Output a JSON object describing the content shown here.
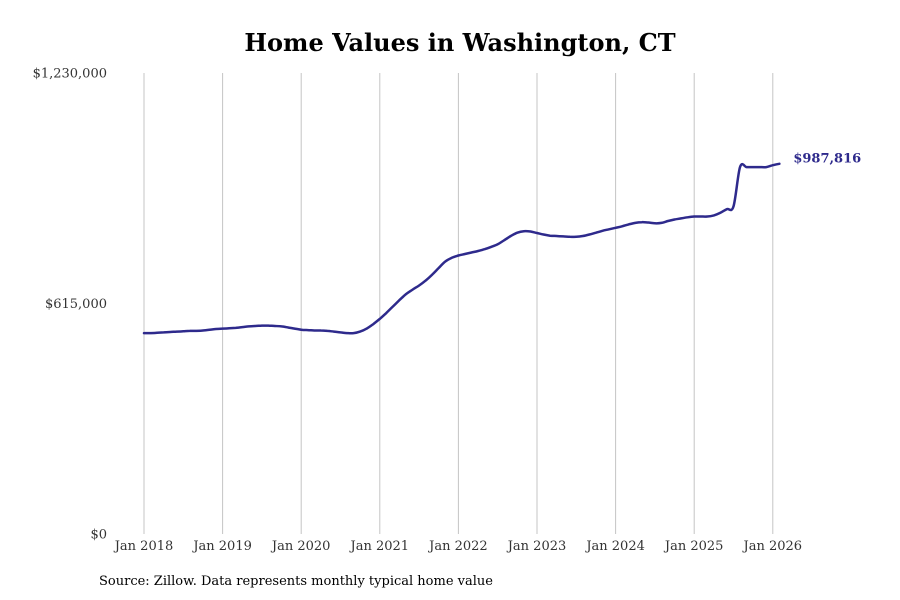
{
  "chart_data": {
    "type": "line",
    "title": "Home Values in Washington, CT",
    "xlabel": "",
    "ylabel": "",
    "x_tick_labels": [
      "Jan 2018",
      "Jan 2019",
      "Jan 2020",
      "Jan 2021",
      "Jan 2022",
      "Jan 2023",
      "Jan 2024",
      "Jan 2025",
      "Jan 2026"
    ],
    "y_tick_labels": [
      "$0",
      "$615,000",
      "$1,230,000"
    ],
    "y_tick_values": [
      0,
      615000,
      1230000
    ],
    "ylim": [
      0,
      1230000
    ],
    "x_start": "2018-01",
    "x_end": "2026-02",
    "grid": "vertical",
    "line_color": "#2e2a8c",
    "end_label": "$987,816",
    "series": [
      {
        "name": "Typical home value",
        "points": [
          [
            0,
            536000
          ],
          [
            1,
            536000
          ],
          [
            2,
            537000
          ],
          [
            3,
            538000
          ],
          [
            4,
            539000
          ],
          [
            5,
            540000
          ],
          [
            6,
            541000
          ],
          [
            7,
            542000
          ],
          [
            8,
            542000
          ],
          [
            9,
            543000
          ],
          [
            10,
            545000
          ],
          [
            11,
            547000
          ],
          [
            12,
            548000
          ],
          [
            13,
            549000
          ],
          [
            14,
            550000
          ],
          [
            15,
            552000
          ],
          [
            16,
            554000
          ],
          [
            17,
            555000
          ],
          [
            18,
            556000
          ],
          [
            19,
            556000
          ],
          [
            20,
            555000
          ],
          [
            21,
            554000
          ],
          [
            22,
            551000
          ],
          [
            23,
            548000
          ],
          [
            24,
            545000
          ],
          [
            25,
            544000
          ],
          [
            26,
            543000
          ],
          [
            27,
            543000
          ],
          [
            28,
            542000
          ],
          [
            29,
            540000
          ],
          [
            30,
            538000
          ],
          [
            31,
            536000
          ],
          [
            32,
            536000
          ],
          [
            33,
            540000
          ],
          [
            34,
            548000
          ],
          [
            35,
            560000
          ],
          [
            36,
            574000
          ],
          [
            37,
            590000
          ],
          [
            38,
            607000
          ],
          [
            39,
            624000
          ],
          [
            40,
            640000
          ],
          [
            41,
            652000
          ],
          [
            42,
            663000
          ],
          [
            43,
            676000
          ],
          [
            44,
            692000
          ],
          [
            45,
            710000
          ],
          [
            46,
            727000
          ],
          [
            47,
            737000
          ],
          [
            48,
            743000
          ],
          [
            49,
            747000
          ],
          [
            50,
            751000
          ],
          [
            51,
            755000
          ],
          [
            52,
            760000
          ],
          [
            53,
            766000
          ],
          [
            54,
            773000
          ],
          [
            55,
            784000
          ],
          [
            56,
            795000
          ],
          [
            57,
            804000
          ],
          [
            58,
            808000
          ],
          [
            59,
            807000
          ],
          [
            60,
            803000
          ],
          [
            61,
            799000
          ],
          [
            62,
            796000
          ],
          [
            63,
            795000
          ],
          [
            64,
            794000
          ],
          [
            65,
            793000
          ],
          [
            66,
            793000
          ],
          [
            67,
            795000
          ],
          [
            68,
            799000
          ],
          [
            69,
            804000
          ],
          [
            70,
            809000
          ],
          [
            71,
            813000
          ],
          [
            72,
            817000
          ],
          [
            73,
            821000
          ],
          [
            74,
            826000
          ],
          [
            75,
            830000
          ],
          [
            76,
            832000
          ],
          [
            77,
            831000
          ],
          [
            78,
            829000
          ],
          [
            79,
            830000
          ],
          [
            80,
            835000
          ],
          [
            81,
            839000
          ],
          [
            82,
            842000
          ],
          [
            83,
            845000
          ],
          [
            84,
            847000
          ],
          [
            85,
            847000
          ],
          [
            86,
            847000
          ],
          [
            87,
            850000
          ],
          [
            88,
            857000
          ],
          [
            89,
            867000
          ],
          [
            90,
            874000
          ],
          [
            91,
            979000
          ],
          [
            92,
            979000
          ],
          [
            93,
            979000
          ],
          [
            94,
            979000
          ],
          [
            95,
            979000
          ],
          [
            96,
            984000
          ],
          [
            97,
            987816
          ]
        ]
      }
    ]
  },
  "source": "Source: Zillow. Data represents monthly typical home value"
}
